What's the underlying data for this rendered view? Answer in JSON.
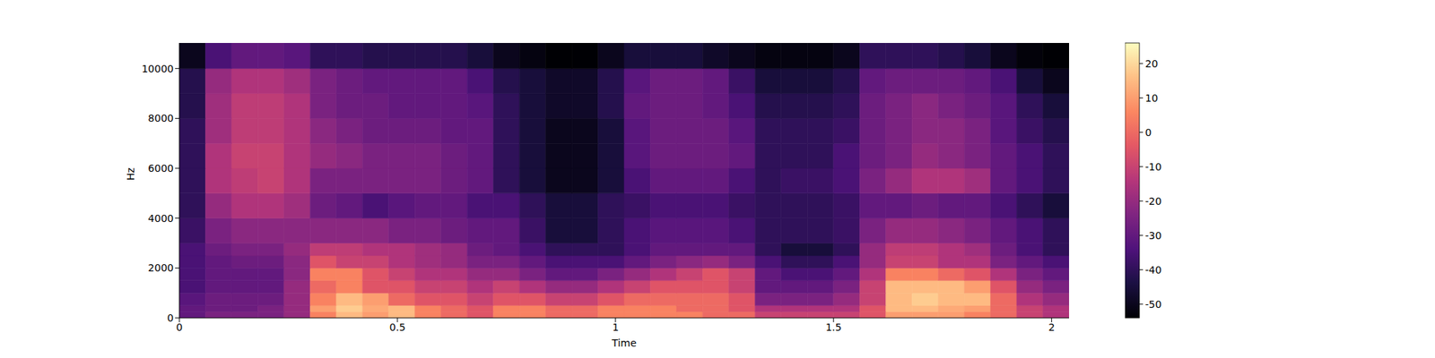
{
  "chart_data": {
    "type": "heatmap",
    "x_label": "Time",
    "y_label": "Hz",
    "xlim": [
      0,
      2.04
    ],
    "ylim": [
      0,
      11025
    ],
    "xticks": [
      0,
      0.5,
      1,
      1.5,
      2
    ],
    "yticks": [
      0,
      2000,
      4000,
      6000,
      8000,
      10000
    ],
    "x_bins": [
      0,
      0.06,
      0.12,
      0.18,
      0.24,
      0.3,
      0.36,
      0.42,
      0.48,
      0.54,
      0.6,
      0.66,
      0.72,
      0.78,
      0.84,
      0.9,
      0.96,
      1.02,
      1.08,
      1.14,
      1.2,
      1.26,
      1.32,
      1.38,
      1.44,
      1.5,
      1.56,
      1.62,
      1.68,
      1.74,
      1.8,
      1.86,
      1.92,
      1.98,
      2.04
    ],
    "y_bins": [
      0,
      250,
      500,
      1000,
      1500,
      2000,
      2500,
      3000,
      4000,
      5000,
      6000,
      7000,
      8000,
      9000,
      10000,
      11025
    ],
    "cells": [
      [
        -30,
        -25,
        -25,
        -25,
        -20,
        5,
        15,
        10,
        15,
        5,
        0,
        -5,
        5,
        5,
        0,
        0,
        5,
        5,
        5,
        5,
        0,
        0,
        -10,
        -10,
        -10,
        -10,
        -5,
        10,
        10,
        10,
        5,
        0,
        -10,
        -15
      ],
      [
        -30,
        -28,
        -28,
        -25,
        -20,
        10,
        18,
        12,
        15,
        5,
        0,
        -5,
        5,
        5,
        0,
        0,
        5,
        5,
        5,
        0,
        0,
        -5,
        -15,
        -15,
        -15,
        -15,
        -5,
        15,
        15,
        12,
        10,
        0,
        -10,
        -15
      ],
      [
        -32,
        -28,
        -28,
        -28,
        -20,
        5,
        15,
        10,
        0,
        -5,
        -5,
        -10,
        -5,
        -5,
        -10,
        -10,
        -5,
        0,
        0,
        0,
        0,
        -5,
        -25,
        -25,
        -25,
        -20,
        -10,
        15,
        18,
        15,
        15,
        0,
        -15,
        -20
      ],
      [
        -35,
        -30,
        -30,
        -30,
        -20,
        0,
        5,
        -5,
        -5,
        -10,
        -10,
        -15,
        -10,
        -15,
        -20,
        -20,
        -15,
        -10,
        -5,
        -5,
        -5,
        -10,
        -30,
        -30,
        -30,
        -25,
        -10,
        15,
        15,
        15,
        10,
        -5,
        -20,
        -25
      ],
      [
        -35,
        -30,
        -30,
        -30,
        -22,
        5,
        5,
        -5,
        -10,
        -15,
        -15,
        -20,
        -20,
        -25,
        -30,
        -30,
        -25,
        -20,
        -15,
        -10,
        -5,
        -10,
        -30,
        -35,
        -35,
        -30,
        -15,
        5,
        5,
        0,
        -5,
        -15,
        -25,
        -30
      ],
      [
        -35,
        -30,
        -28,
        -28,
        -22,
        -5,
        -10,
        -10,
        -15,
        -18,
        -20,
        -25,
        -25,
        -30,
        -35,
        -35,
        -35,
        -30,
        -25,
        -22,
        -20,
        -25,
        -35,
        -40,
        -40,
        -35,
        -20,
        -10,
        -10,
        -15,
        -15,
        -25,
        -30,
        -35
      ],
      [
        -35,
        -28,
        -25,
        -25,
        -20,
        -12,
        -12,
        -15,
        -15,
        -18,
        -20,
        -28,
        -30,
        -35,
        -40,
        -40,
        -40,
        -35,
        -30,
        -30,
        -30,
        -30,
        -40,
        -45,
        -45,
        -40,
        -20,
        -12,
        -12,
        -15,
        -18,
        -28,
        -35,
        -40
      ],
      [
        -38,
        -25,
        -22,
        -22,
        -22,
        -22,
        -22,
        -22,
        -25,
        -25,
        -28,
        -30,
        -30,
        -38,
        -45,
        -45,
        -40,
        -35,
        -32,
        -32,
        -32,
        -35,
        -40,
        -40,
        -40,
        -38,
        -25,
        -20,
        -20,
        -22,
        -25,
        -30,
        -35,
        -40
      ],
      [
        -40,
        -20,
        -15,
        -15,
        -18,
        -28,
        -30,
        -35,
        -32,
        -30,
        -30,
        -35,
        -35,
        -40,
        -45,
        -45,
        -40,
        -38,
        -35,
        -35,
        -35,
        -38,
        -40,
        -40,
        -40,
        -38,
        -30,
        -30,
        -28,
        -30,
        -30,
        -35,
        -40,
        -45
      ],
      [
        -40,
        -15,
        -12,
        -10,
        -15,
        -25,
        -25,
        -25,
        -25,
        -25,
        -28,
        -30,
        -40,
        -45,
        -50,
        -50,
        -45,
        -35,
        -30,
        -30,
        -30,
        -35,
        -40,
        -38,
        -38,
        -35,
        -25,
        -20,
        -15,
        -15,
        -18,
        -30,
        -35,
        -40
      ],
      [
        -40,
        -15,
        -10,
        -10,
        -15,
        -20,
        -22,
        -25,
        -25,
        -25,
        -28,
        -30,
        -40,
        -45,
        -50,
        -50,
        -45,
        -32,
        -28,
        -28,
        -28,
        -30,
        -40,
        -40,
        -40,
        -35,
        -28,
        -25,
        -20,
        -22,
        -25,
        -30,
        -35,
        -40
      ],
      [
        -40,
        -18,
        -12,
        -12,
        -15,
        -22,
        -25,
        -28,
        -28,
        -28,
        -30,
        -30,
        -40,
        -45,
        -50,
        -50,
        -45,
        -32,
        -28,
        -28,
        -28,
        -32,
        -40,
        -40,
        -40,
        -38,
        -28,
        -25,
        -22,
        -22,
        -25,
        -32,
        -38,
        -42
      ],
      [
        -42,
        -18,
        -12,
        -12,
        -15,
        -25,
        -28,
        -28,
        -30,
        -30,
        -30,
        -32,
        -40,
        -45,
        -48,
        -48,
        -42,
        -30,
        -28,
        -28,
        -30,
        -35,
        -42,
        -42,
        -42,
        -40,
        -28,
        -25,
        -22,
        -25,
        -28,
        -32,
        -40,
        -45
      ],
      [
        -42,
        -20,
        -15,
        -15,
        -18,
        -25,
        -28,
        -30,
        -30,
        -30,
        -30,
        -35,
        -42,
        -45,
        -48,
        -48,
        -42,
        -32,
        -28,
        -28,
        -30,
        -38,
        -45,
        -45,
        -45,
        -42,
        -30,
        -28,
        -28,
        -28,
        -30,
        -35,
        -45,
        -50
      ],
      [
        -50,
        -35,
        -30,
        -30,
        -32,
        -40,
        -40,
        -42,
        -42,
        -42,
        -42,
        -45,
        -50,
        -52,
        -54,
        -54,
        -50,
        -45,
        -45,
        -45,
        -48,
        -50,
        -52,
        -52,
        -52,
        -50,
        -40,
        -40,
        -40,
        -42,
        -45,
        -50,
        -53,
        -54
      ]
    ],
    "colorbar_range": [
      -54,
      26
    ],
    "colorbar_ticks": [
      -50,
      -40,
      -30,
      -20,
      -10,
      0,
      10,
      20
    ]
  }
}
